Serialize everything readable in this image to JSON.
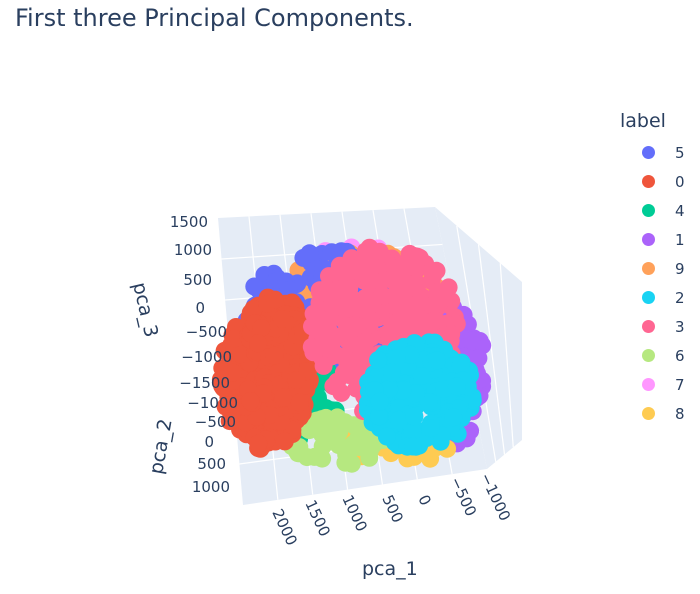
{
  "chart_data": {
    "type": "scatter3d",
    "title": "First three Principal Components.",
    "legend_title": "label",
    "legend_placement": "right",
    "axes": {
      "x": {
        "label": "pca_1",
        "ticks": [
          "2000",
          "1500",
          "1000",
          "500",
          "0",
          "−500",
          "−1000"
        ],
        "range": [
          -1000,
          2200
        ]
      },
      "y": {
        "label": "pca_2",
        "ticks": [
          "−1500",
          "−1000",
          "−500",
          "0",
          "500",
          "1000"
        ],
        "range": [
          -1500,
          1200
        ]
      },
      "z": {
        "label": "pca_3",
        "ticks": [
          "1500",
          "1000",
          "500",
          "0",
          "−500",
          "−1000"
        ],
        "range": [
          -1000,
          1500
        ]
      }
    },
    "series": [
      {
        "name": "5",
        "color": "#636efa"
      },
      {
        "name": "0",
        "color": "#ef553b"
      },
      {
        "name": "4",
        "color": "#00cc96"
      },
      {
        "name": "1",
        "color": "#ab63fa"
      },
      {
        "name": "9",
        "color": "#ffa15a"
      },
      {
        "name": "2",
        "color": "#19d3f3"
      },
      {
        "name": "3",
        "color": "#ff6692"
      },
      {
        "name": "6",
        "color": "#b6e880"
      },
      {
        "name": "7",
        "color": "#ff97ff"
      },
      {
        "name": "8",
        "color": "#fecb52"
      }
    ]
  }
}
